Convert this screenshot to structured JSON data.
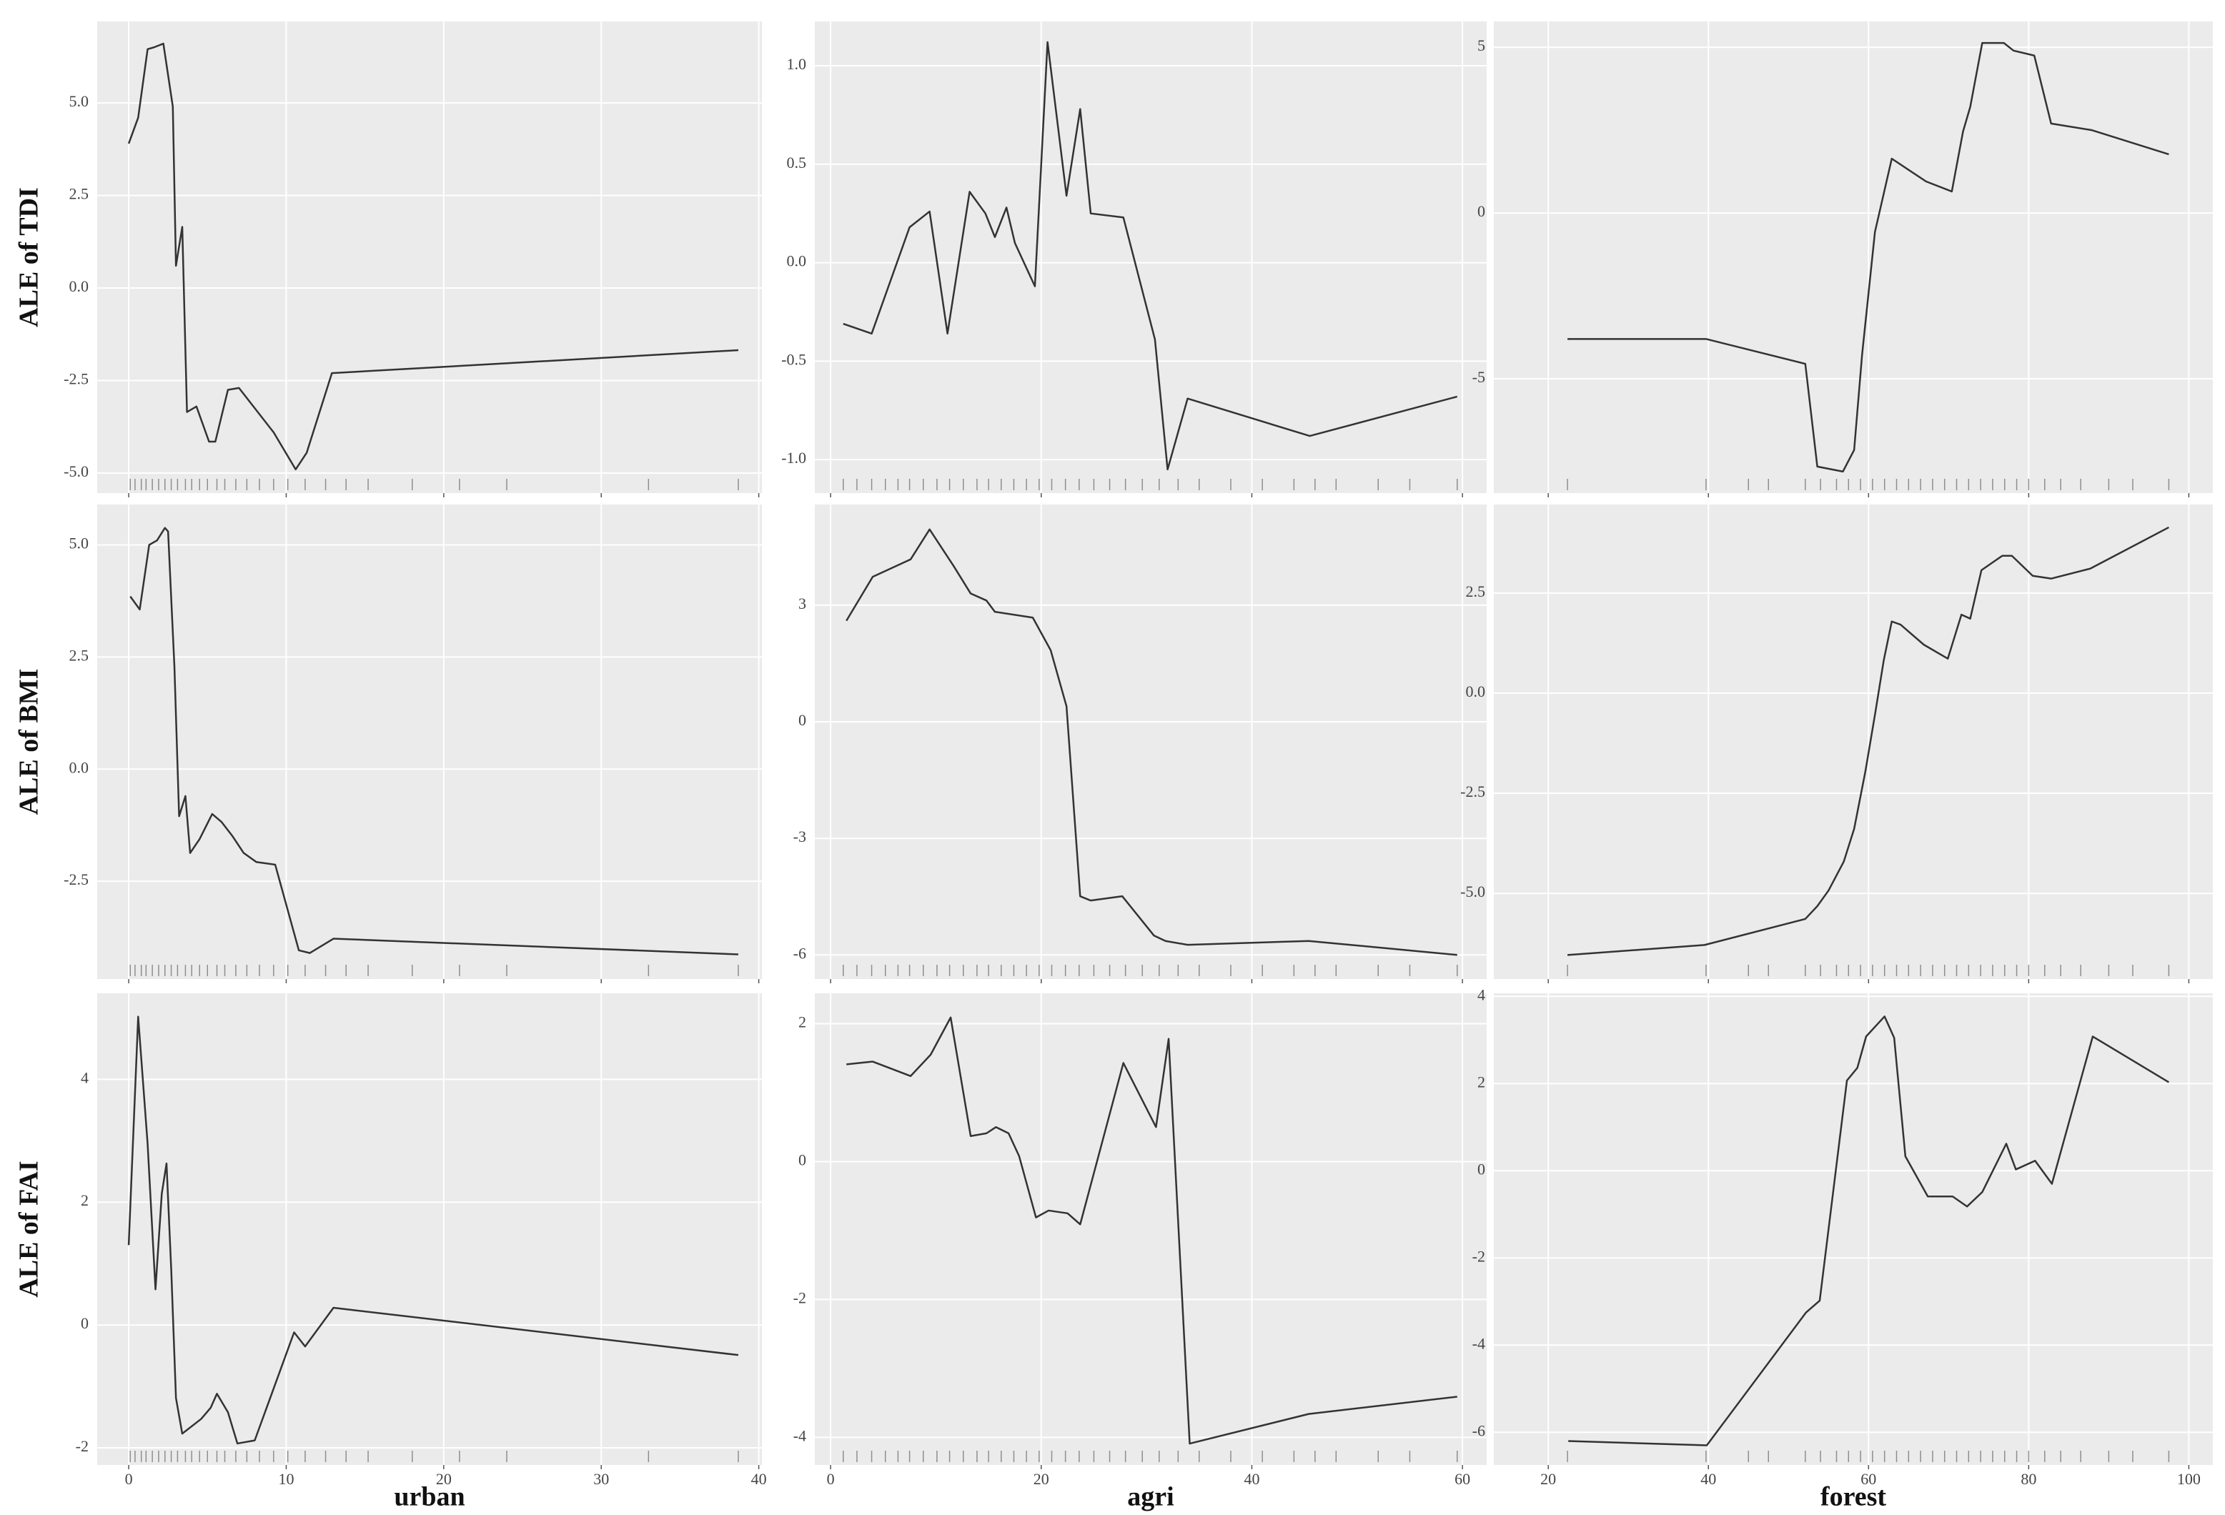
{
  "chart_data": [
    {
      "type": "line",
      "ylabel": "ALE of TDI",
      "color": "#333333",
      "grid": true,
      "xtick_labels": false,
      "x": [
        0,
        0.6,
        1.2,
        1.6,
        2.2,
        2.8,
        3.0,
        3.4,
        3.7,
        4.3,
        5.1,
        5.5,
        6.3,
        7.0,
        9.2,
        10.6,
        11.3,
        12.9,
        38.7
      ],
      "values": [
        3.9,
        4.6,
        6.45,
        6.5,
        6.6,
        4.9,
        0.6,
        1.65,
        -3.35,
        -3.2,
        -4.15,
        -4.15,
        -2.75,
        -2.7,
        -3.9,
        -4.9,
        -4.45,
        -2.3,
        -1.68
      ],
      "xlim": [
        -2,
        40.2
      ],
      "ylim": [
        -5.54,
        7.2
      ],
      "xticks": [
        0,
        10,
        20,
        30,
        40
      ],
      "yticks": [
        {
          "value": 5,
          "label": "5.0"
        },
        2.5,
        {
          "value": 0,
          "label": "0.0"
        },
        -2.5,
        {
          "value": -5,
          "label": "-5.0"
        }
      ],
      "rug": [
        0.1,
        0.4,
        0.8,
        1.1,
        1.5,
        1.9,
        2.3,
        2.7,
        3.1,
        3.6,
        4.0,
        4.5,
        5.0,
        5.6,
        6.1,
        6.8,
        7.5,
        8.3,
        9.2,
        10.1,
        11.2,
        12.5,
        13.8,
        15.2,
        18.0,
        21.0,
        24.0,
        33.0,
        38.7
      ]
    },
    {
      "type": "line",
      "color": "#333333",
      "grid": true,
      "xtick_labels": false,
      "x": [
        1.2,
        3.9,
        7.5,
        9.4,
        11.1,
        13.2,
        14.7,
        15.6,
        16.7,
        17.5,
        19.4,
        20.6,
        22.4,
        23.7,
        24.7,
        27.8,
        30.8,
        32.0,
        33.9,
        45.5,
        59.5
      ],
      "values": [
        -0.31,
        -0.36,
        0.18,
        0.26,
        -0.36,
        0.36,
        0.25,
        0.13,
        0.28,
        0.1,
        -0.12,
        1.12,
        0.34,
        0.78,
        0.25,
        0.23,
        -0.39,
        -1.05,
        -0.69,
        -0.88,
        -0.68
      ],
      "xlim": [
        -1.5,
        62.3
      ],
      "ylim": [
        -1.17,
        1.225
      ],
      "xticks": [
        0,
        20,
        40,
        60
      ],
      "yticks": [
        {
          "value": 1,
          "label": "1.0"
        },
        0.5,
        {
          "value": 0,
          "label": "0.0"
        },
        -0.5,
        {
          "value": -1,
          "label": "-1.0"
        }
      ],
      "rug": [
        1.2,
        2.5,
        3.9,
        5.2,
        6.4,
        7.5,
        8.8,
        10.1,
        11.3,
        12.6,
        13.9,
        15.0,
        16.2,
        17.4,
        18.6,
        19.8,
        21.0,
        22.3,
        23.6,
        25.0,
        26.5,
        28.0,
        29.6,
        31.2,
        33.0,
        35.0,
        38.0,
        41.0,
        44.0,
        46.0,
        48.0,
        52.0,
        55.0,
        59.5
      ]
    },
    {
      "type": "line",
      "color": "#333333",
      "grid": true,
      "xtick_labels": false,
      "x": [
        22.4,
        39.7,
        52.1,
        53.6,
        56.8,
        58.2,
        59.2,
        60.8,
        62.9,
        67.2,
        70.4,
        71.8,
        72.7,
        74.2,
        76.9,
        78.1,
        80.7,
        82.8,
        87.9,
        97.5
      ],
      "values": [
        -3.8,
        -3.8,
        -4.55,
        -7.65,
        -7.8,
        -7.15,
        -4.26,
        -0.57,
        1.64,
        0.95,
        0.65,
        2.46,
        3.2,
        5.13,
        5.13,
        4.9,
        4.75,
        2.7,
        2.5,
        1.77
      ],
      "xlim": [
        13.2,
        103
      ],
      "ylim": [
        -8.45,
        5.78
      ],
      "xticks": [
        20,
        40,
        60,
        80,
        100
      ],
      "yticks": [
        5,
        0,
        -5
      ],
      "rug": [
        22.4,
        39.7,
        45.0,
        47.5,
        52.1,
        54.0,
        56.0,
        57.5,
        59.0,
        60.5,
        62.0,
        63.5,
        65.0,
        66.5,
        68.0,
        69.5,
        71.0,
        72.5,
        74.0,
        75.5,
        77.0,
        78.5,
        80.0,
        82.0,
        84.0,
        86.5,
        90.0,
        93.0,
        97.5
      ]
    },
    {
      "type": "line",
      "ylabel": "ALE of BMI",
      "color": "#333333",
      "grid": true,
      "xtick_labels": false,
      "x": [
        0.1,
        0.7,
        1.3,
        1.8,
        2.3,
        2.5,
        2.9,
        3.2,
        3.6,
        3.9,
        4.5,
        5.3,
        5.9,
        6.6,
        7.3,
        8.1,
        9.3,
        10.8,
        11.5,
        13.0,
        38.7
      ],
      "values": [
        3.85,
        3.56,
        5.0,
        5.1,
        5.38,
        5.3,
        2.3,
        -1.05,
        -0.6,
        -1.87,
        -1.56,
        -1.0,
        -1.18,
        -1.5,
        -1.87,
        -2.07,
        -2.13,
        -4.04,
        -4.1,
        -3.78,
        -4.13
      ],
      "xlim": [
        -2,
        40.2
      ],
      "ylim": [
        -4.68,
        5.9
      ],
      "xticks": [
        0,
        10,
        20,
        30,
        40
      ],
      "yticks": [
        {
          "value": 5,
          "label": "5.0"
        },
        2.5,
        {
          "value": 0,
          "label": "0.0"
        },
        -2.5
      ],
      "rug": [
        0.1,
        0.4,
        0.8,
        1.1,
        1.5,
        1.9,
        2.3,
        2.7,
        3.1,
        3.6,
        4.0,
        4.5,
        5.0,
        5.6,
        6.1,
        6.8,
        7.5,
        8.3,
        9.2,
        10.1,
        11.2,
        12.5,
        13.8,
        15.2,
        18.0,
        21.0,
        24.0,
        33.0,
        38.7
      ]
    },
    {
      "type": "line",
      "color": "#333333",
      "grid": true,
      "xtick_labels": false,
      "x": [
        1.5,
        4.0,
        7.6,
        9.4,
        11.7,
        13.3,
        14.8,
        15.6,
        19.2,
        20.9,
        22.4,
        23.7,
        24.7,
        27.7,
        30.7,
        31.8,
        33.9,
        45.4,
        59.5
      ],
      "values": [
        2.6,
        3.73,
        4.18,
        4.95,
        4.0,
        3.3,
        3.12,
        2.83,
        2.68,
        1.84,
        0.4,
        -4.49,
        -4.6,
        -4.49,
        -5.5,
        -5.64,
        -5.74,
        -5.64,
        -6.0
      ],
      "xlim": [
        -1.5,
        62.3
      ],
      "ylim": [
        -6.62,
        5.59
      ],
      "xticks": [
        0,
        20,
        40,
        60
      ],
      "yticks": [
        3,
        0,
        -3,
        -6
      ],
      "rug": [
        1.2,
        2.5,
        3.9,
        5.2,
        6.4,
        7.5,
        8.8,
        10.1,
        11.3,
        12.6,
        13.9,
        15.0,
        16.2,
        17.4,
        18.6,
        19.8,
        21.0,
        22.3,
        23.6,
        25.0,
        26.5,
        28.0,
        29.6,
        31.2,
        33.0,
        35.0,
        38.0,
        41.0,
        44.0,
        46.0,
        48.0,
        52.0,
        55.0,
        59.5
      ]
    },
    {
      "type": "line",
      "color": "#333333",
      "grid": true,
      "xtick_labels": false,
      "x": [
        22.4,
        39.5,
        52.1,
        53.6,
        55.0,
        56.9,
        58.2,
        59.6,
        60.8,
        61.9,
        62.9,
        64.0,
        66.9,
        69.9,
        71.6,
        72.7,
        74.1,
        76.7,
        77.9,
        80.5,
        82.8,
        87.7,
        97.5
      ],
      "values": [
        -6.54,
        -6.29,
        -5.64,
        -5.32,
        -4.93,
        -4.21,
        -3.39,
        -1.96,
        -0.54,
        0.82,
        1.79,
        1.71,
        1.21,
        0.86,
        1.96,
        1.86,
        3.07,
        3.43,
        3.43,
        2.93,
        2.86,
        3.11,
        4.14
      ],
      "xlim": [
        13.2,
        103
      ],
      "ylim": [
        -7.14,
        4.71
      ],
      "xticks": [
        20,
        40,
        60,
        80,
        100
      ],
      "yticks": [
        2.5,
        {
          "value": 0,
          "label": "0.0"
        },
        -2.5,
        {
          "value": -5,
          "label": "-5.0"
        }
      ],
      "rug": [
        22.4,
        39.7,
        45.0,
        47.5,
        52.1,
        54.0,
        56.0,
        57.5,
        59.0,
        60.5,
        62.0,
        63.5,
        65.0,
        66.5,
        68.0,
        69.5,
        71.0,
        72.5,
        74.0,
        75.5,
        77.0,
        78.5,
        80.0,
        82.0,
        84.0,
        86.5,
        90.0,
        93.0,
        97.5
      ]
    },
    {
      "type": "line",
      "ylabel": "ALE of FAI",
      "xlabel": "urban",
      "color": "#333333",
      "grid": true,
      "xtick_labels": true,
      "x": [
        0,
        0.6,
        1.2,
        1.7,
        2.1,
        2.4,
        2.7,
        3.0,
        3.4,
        4.6,
        5.2,
        5.6,
        6.3,
        6.9,
        8.0,
        10.5,
        11.2,
        13.0,
        38.7
      ],
      "values": [
        1.3,
        5.02,
        2.95,
        0.58,
        2.14,
        2.63,
        0.9,
        -1.19,
        -1.77,
        -1.53,
        -1.35,
        -1.12,
        -1.42,
        -1.93,
        -1.88,
        -0.12,
        -0.35,
        0.28,
        -0.49
      ],
      "xlim": [
        -2,
        40.2
      ],
      "ylim": [
        -2.28,
        5.4
      ],
      "xticks": [
        0,
        10,
        20,
        30,
        40
      ],
      "yticks": [
        4,
        2,
        0,
        -2
      ],
      "rug": [
        0.1,
        0.4,
        0.8,
        1.1,
        1.5,
        1.9,
        2.3,
        2.7,
        3.1,
        3.6,
        4.0,
        4.5,
        5.0,
        5.6,
        6.1,
        6.8,
        7.5,
        8.3,
        9.2,
        10.1,
        11.2,
        12.5,
        13.8,
        15.2,
        18.0,
        21.0,
        24.0,
        33.0,
        38.7
      ]
    },
    {
      "type": "line",
      "xlabel": "agri",
      "color": "#333333",
      "grid": true,
      "xtick_labels": true,
      "x": [
        1.5,
        4.0,
        7.6,
        9.5,
        11.4,
        13.3,
        14.8,
        15.7,
        16.9,
        17.9,
        19.5,
        20.7,
        22.5,
        23.7,
        27.8,
        30.9,
        32.1,
        34.1,
        45.4,
        59.5
      ],
      "values": [
        1.41,
        1.45,
        1.24,
        1.55,
        2.09,
        0.37,
        0.41,
        0.5,
        0.41,
        0.08,
        -0.81,
        -0.71,
        -0.75,
        -0.91,
        1.43,
        0.5,
        1.78,
        -4.09,
        -3.66,
        -3.41
      ],
      "xlim": [
        -1.5,
        62.3
      ],
      "ylim": [
        -4.4,
        2.44
      ],
      "xticks": [
        0,
        20,
        40,
        60
      ],
      "yticks": [
        2,
        0,
        -2,
        -4
      ],
      "rug": [
        1.2,
        2.5,
        3.9,
        5.2,
        6.4,
        7.5,
        8.8,
        10.1,
        11.3,
        12.6,
        13.9,
        15.0,
        16.2,
        17.4,
        18.6,
        19.8,
        21.0,
        22.3,
        23.6,
        25.0,
        26.5,
        28.0,
        29.6,
        31.2,
        33.0,
        35.0,
        38.0,
        41.0,
        44.0,
        46.0,
        48.0,
        52.0,
        55.0,
        59.5
      ]
    },
    {
      "type": "line",
      "xlabel": "forest",
      "color": "#333333",
      "grid": true,
      "xtick_labels": true,
      "x": [
        22.5,
        39.8,
        52.2,
        53.9,
        57.3,
        58.6,
        59.7,
        62.0,
        63.2,
        64.6,
        67.4,
        70.5,
        72.3,
        74.2,
        77.2,
        78.4,
        80.8,
        82.9,
        88.0,
        97.5
      ],
      "values": [
        -6.2,
        -6.3,
        -3.25,
        -2.98,
        2.07,
        2.36,
        3.08,
        3.54,
        3.05,
        0.33,
        -0.59,
        -0.59,
        -0.82,
        -0.49,
        0.62,
        0.03,
        0.23,
        -0.3,
        3.08,
        2.03
      ],
      "xlim": [
        13.2,
        103
      ],
      "ylim": [
        -6.75,
        4.07
      ],
      "xticks": [
        20,
        40,
        60,
        80,
        100
      ],
      "yticks": [
        4,
        2,
        0,
        -2,
        -4,
        -6
      ],
      "rug": [
        22.4,
        39.7,
        45.0,
        47.5,
        52.1,
        54.0,
        56.0,
        57.5,
        59.0,
        60.5,
        62.0,
        63.5,
        65.0,
        66.5,
        68.0,
        69.5,
        71.0,
        72.5,
        74.0,
        75.5,
        77.0,
        78.5,
        80.0,
        82.0,
        84.0,
        86.5,
        90.0,
        93.0,
        97.5
      ]
    }
  ]
}
